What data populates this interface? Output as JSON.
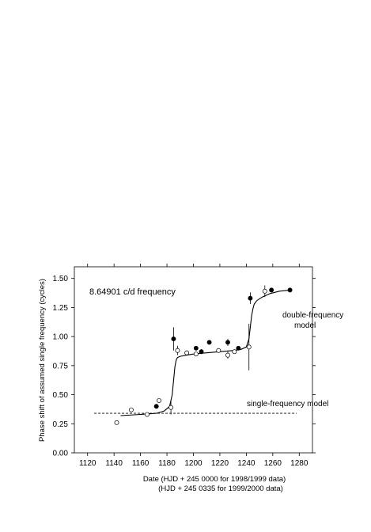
{
  "chart_data": {
    "type": "scatter",
    "title": "",
    "xlabel": "Date (HJD + 245 0000 for 1998/1999 data)",
    "xlabel2": "(HJD + 245 0335 for 1999/2000 data)",
    "ylabel": "Phase shift of assumed single frequency (cycles)",
    "xlim": [
      1110,
      1290
    ],
    "ylim": [
      0.0,
      1.6
    ],
    "xticks": [
      "1120",
      "1140",
      "1160",
      "1180",
      "1200",
      "1220",
      "1240",
      "1260",
      "1280"
    ],
    "yticks": [
      "0.00",
      "0.25",
      "0.50",
      "0.75",
      "1.00",
      "1.25",
      "1.50"
    ],
    "grid": false,
    "annotations": {
      "frequency": "8.64901 c/d frequency",
      "double_model_line1": "double-frequency",
      "double_model_line2": "model",
      "single_model": "single-frequency model"
    },
    "series": [
      {
        "marker": "filled-circle",
        "x": [
          1172,
          1185,
          1202,
          1206,
          1212,
          1226,
          1234,
          1243,
          1259,
          1273
        ],
        "y": [
          0.4,
          0.98,
          0.9,
          0.87,
          0.95,
          0.95,
          0.9,
          1.33,
          1.4,
          1.4
        ],
        "err": [
          0.0,
          0.1,
          0.0,
          0.02,
          0.0,
          0.03,
          0.0,
          0.05,
          0.0,
          0.0
        ]
      },
      {
        "marker": "open-circle",
        "x": [
          1142,
          1153,
          1165,
          1174,
          1183,
          1188,
          1195,
          1202,
          1219,
          1226,
          1231,
          1242,
          1254
        ],
        "y": [
          0.26,
          0.37,
          0.33,
          0.45,
          0.39,
          0.88,
          0.86,
          0.85,
          0.88,
          0.84,
          0.87,
          0.91,
          1.39
        ],
        "err": [
          0.0,
          0.0,
          0.0,
          0.0,
          0.06,
          0.04,
          0.02,
          0.02,
          0.0,
          0.03,
          0.0,
          0.2,
          0.05
        ]
      }
    ],
    "double_frequency_curve": {
      "x": [
        1145,
        1160,
        1172,
        1178,
        1182,
        1184,
        1185,
        1186,
        1187,
        1188,
        1190,
        1195,
        1200,
        1210,
        1220,
        1230,
        1236,
        1240,
        1242,
        1243,
        1244,
        1245,
        1246,
        1248,
        1252,
        1258,
        1265,
        1273
      ],
      "y": [
        0.32,
        0.33,
        0.34,
        0.36,
        0.4,
        0.5,
        0.62,
        0.74,
        0.8,
        0.82,
        0.83,
        0.84,
        0.85,
        0.86,
        0.87,
        0.88,
        0.89,
        0.91,
        0.98,
        1.08,
        1.18,
        1.24,
        1.28,
        1.31,
        1.34,
        1.37,
        1.39,
        1.4
      ]
    },
    "single_frequency_line": {
      "x": [
        1125,
        1278
      ],
      "y": [
        0.34,
        0.34
      ]
    }
  }
}
